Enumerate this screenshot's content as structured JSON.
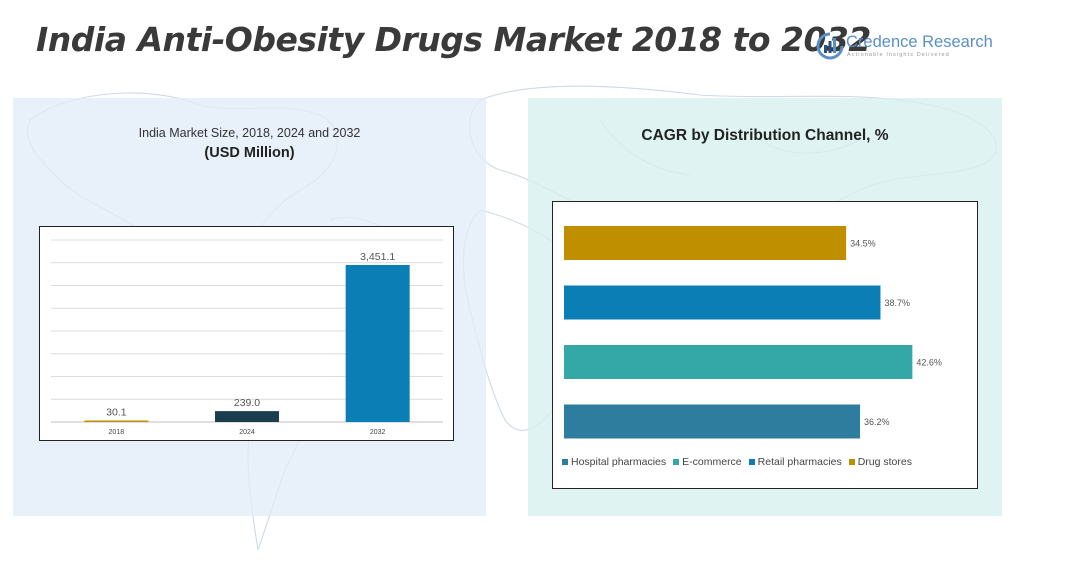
{
  "title": "India Anti-Obesity Drugs Market 2018 to 2032",
  "logo": {
    "name": "Credence Research",
    "tagline": "Actionable Insights Delivered",
    "color": "#5b8fc7"
  },
  "left_panel": {
    "title": "India Market Size, 2018, 2024 and 2032",
    "unit": "(USD Million)"
  },
  "right_panel": {
    "title": "CAGR by Distribution Channel, %"
  },
  "colors": {
    "gold": "#bf8f00",
    "dark_navy": "#1c3d4f",
    "blue": "#0b7eb5",
    "teal": "#33a8a6",
    "steel_blue": "#2e7d9e"
  },
  "chart_data": [
    {
      "type": "bar",
      "orientation": "vertical",
      "title": "India Market Size, 2018, 2024 and 2032",
      "ylabel": "USD Million",
      "categories": [
        "2018",
        "2024",
        "2032"
      ],
      "values": [
        30.1,
        239.0,
        3451.1
      ],
      "labels": [
        "30.1",
        "239.0",
        "3,451.1"
      ],
      "bar_colors": [
        "#bf8f00",
        "#1c3d4f",
        "#0b7eb5"
      ],
      "ylim": [
        0,
        4000
      ],
      "gridlines": true
    },
    {
      "type": "bar",
      "orientation": "horizontal",
      "title": "CAGR by Distribution Channel, %",
      "categories": [
        "Hospital pharmacies",
        "E-commerce",
        "Retail pharmacies",
        "Drug stores"
      ],
      "values": [
        36.2,
        42.6,
        38.7,
        34.5
      ],
      "labels": [
        "36.2%",
        "42.6%",
        "38.7%",
        "34.5%"
      ],
      "bar_colors": [
        "#2e7d9e",
        "#33a8a6",
        "#0b7eb5",
        "#bf8f00"
      ],
      "xlim": [
        0,
        45
      ],
      "legend": "bottom"
    }
  ]
}
